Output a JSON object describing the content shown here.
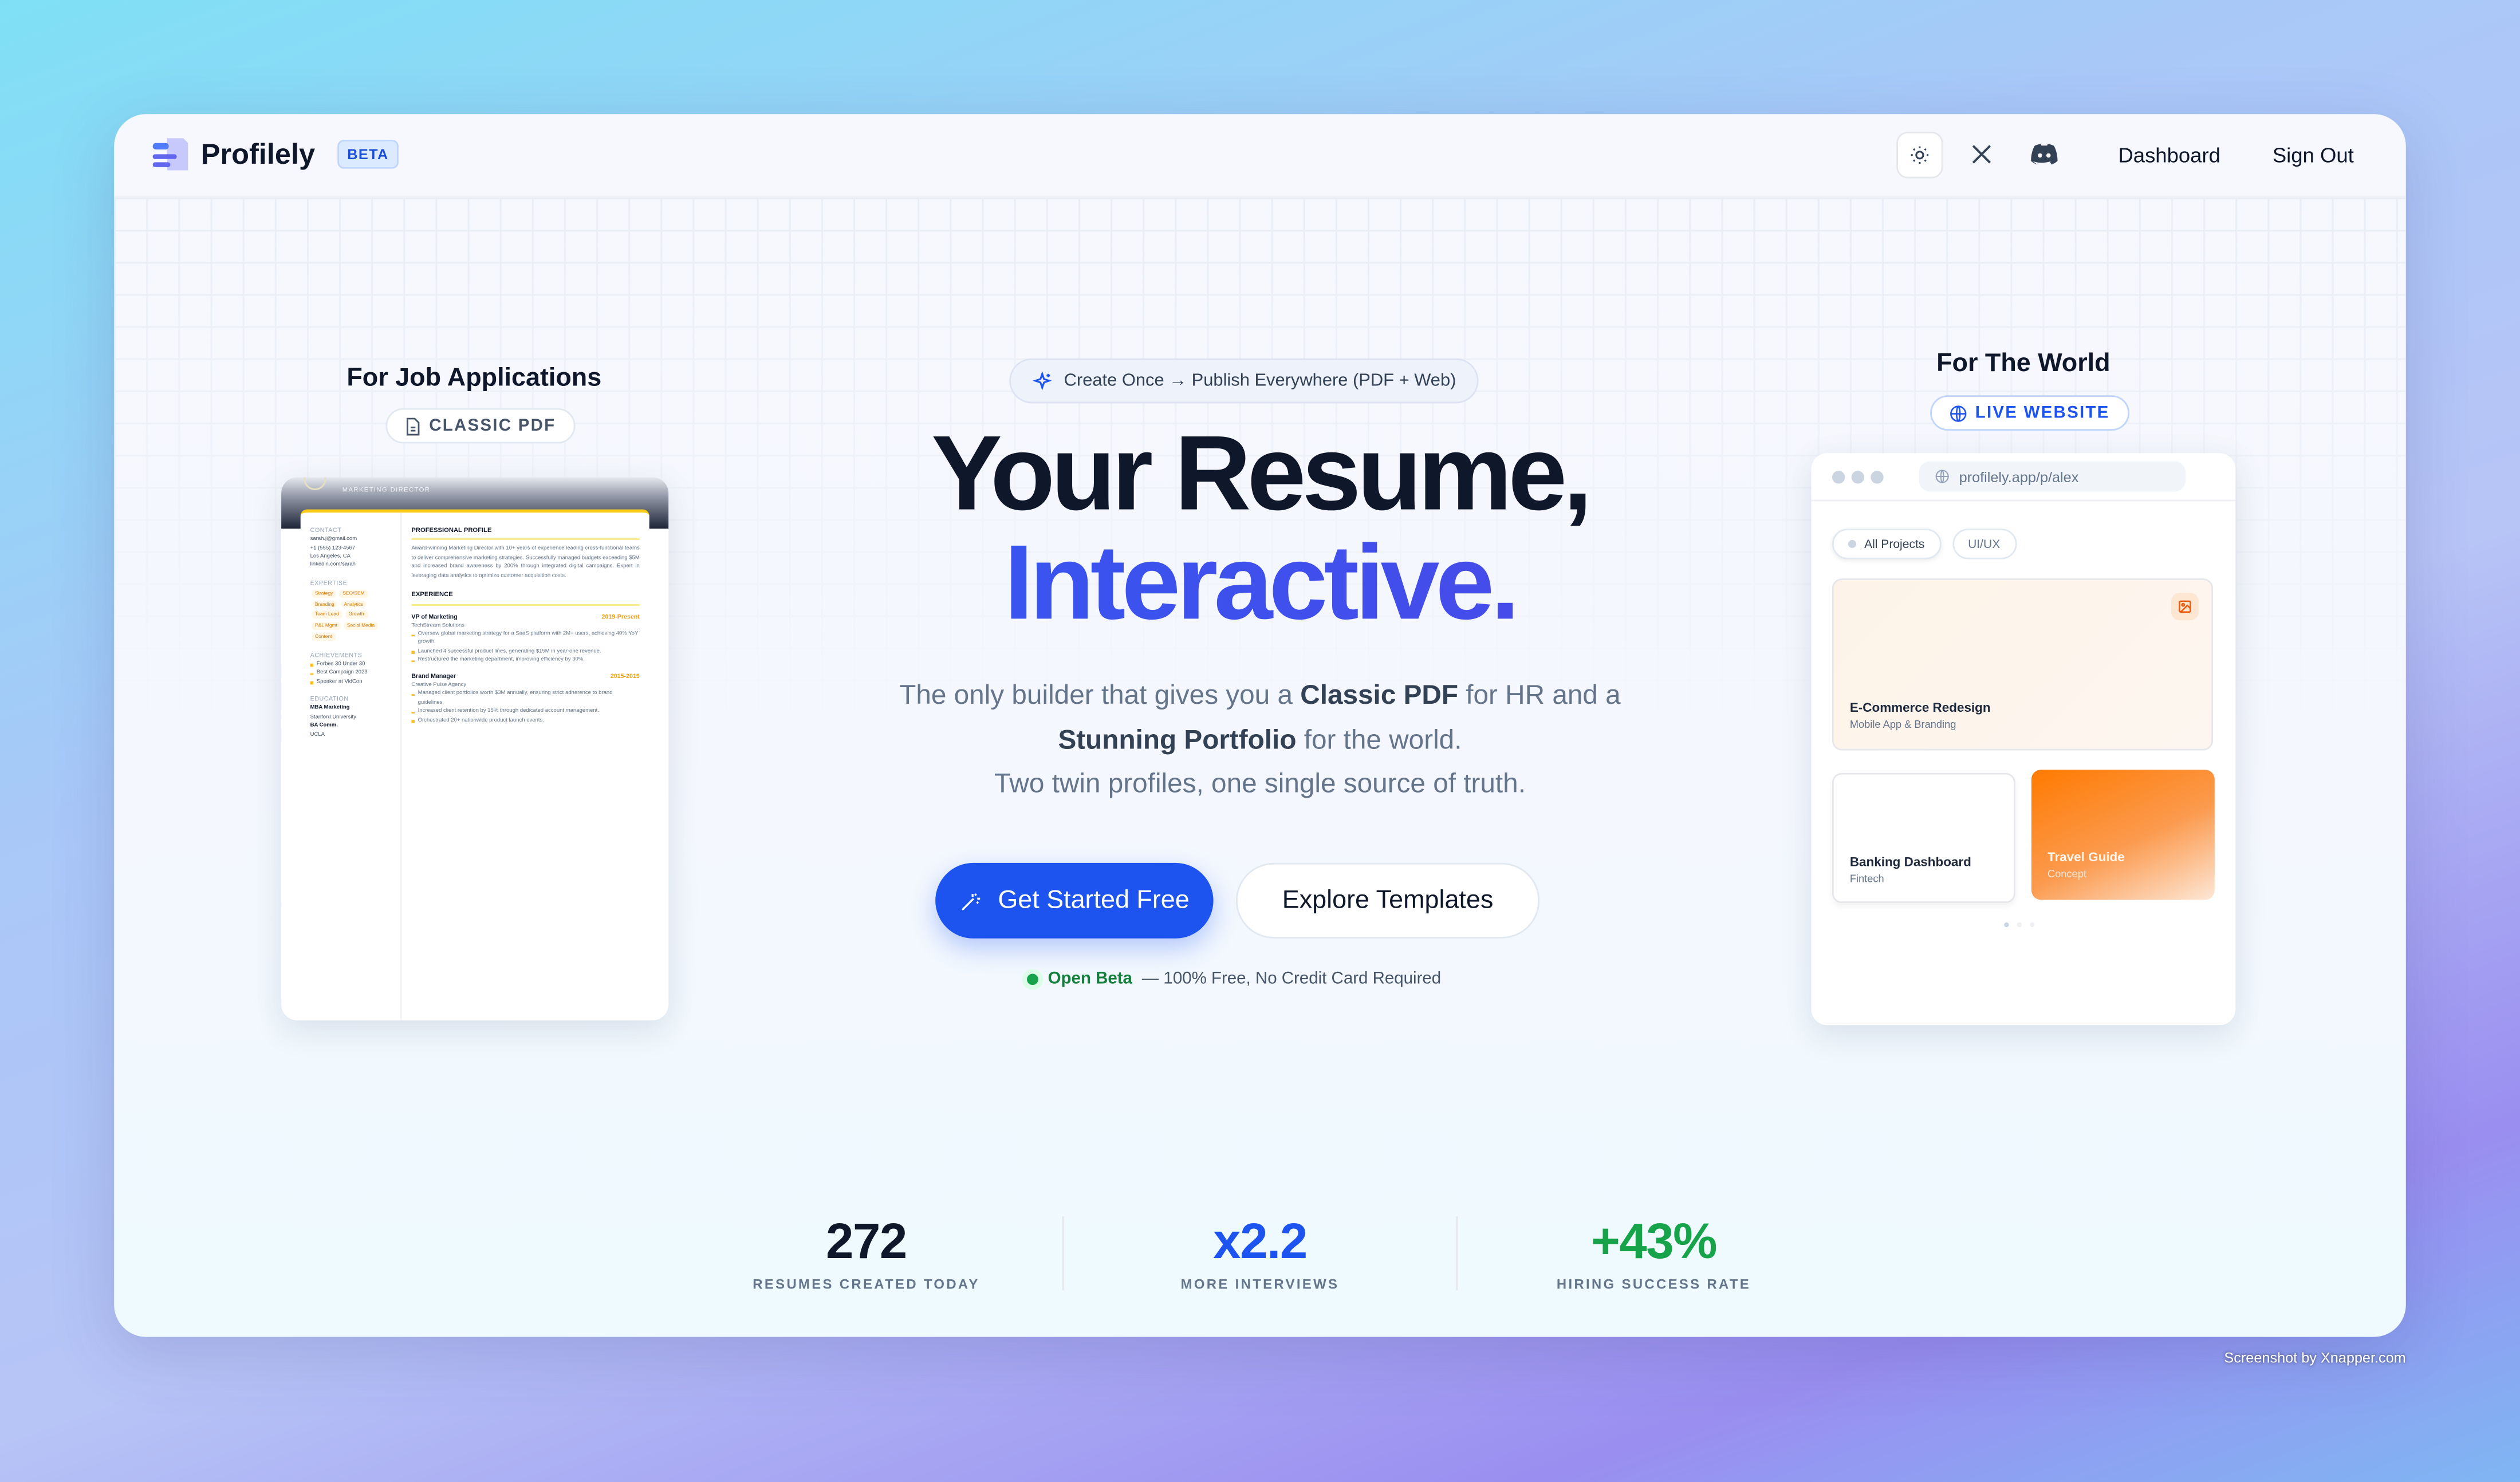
{
  "header": {
    "brand": "Profilely",
    "badge": "BETA",
    "icons": [
      "theme-toggle-sun-icon",
      "x-twitter-icon",
      "discord-icon"
    ],
    "nav": {
      "dashboard": "Dashboard",
      "sign_out": "Sign Out"
    }
  },
  "left": {
    "title": "For Job Applications",
    "chip": "CLASSIC PDF",
    "resume": {
      "role": "MARKETING DIRECTOR",
      "contact_label": "CONTACT",
      "contact": [
        "sarah.j@gmail.com",
        "+1 (555) 123-4567",
        "Los Angeles, CA",
        "linkedin.com/sarah"
      ],
      "expertise_label": "EXPERTISE",
      "expertise": [
        "Strategy",
        "SEO/SEM",
        "Branding",
        "Analytics",
        "Team Lead",
        "Growth",
        "P&L Mgmt",
        "Social Media",
        "Content"
      ],
      "achievements_label": "ACHIEVEMENTS",
      "achievements": [
        "Forbes 30 Under 30",
        "Best Campaign 2023",
        "Speaker at VidCon"
      ],
      "education_label": "EDUCATION",
      "education": [
        {
          "degree": "MBA Marketing",
          "school": "Stanford University"
        },
        {
          "degree": "BA Comm.",
          "school": "UCLA"
        }
      ],
      "profile_label": "PROFESSIONAL PROFILE",
      "profile": "Award-winning Marketing Director with 10+ years of experience leading cross-functional teams to deliver comprehensive marketing strategies. Successfully managed budgets exceeding $5M and increased brand awareness by 200% through integrated digital campaigns. Expert in leveraging data analytics to optimize customer acquisition costs.",
      "experience_label": "EXPERIENCE",
      "jobs": [
        {
          "title": "VP of Marketing",
          "dates": "2019-Present",
          "company": "TechStream Solutions",
          "bullets": [
            "Oversaw global marketing strategy for a SaaS platform with 2M+ users, achieving 40% YoY growth.",
            "Launched 4 successful product lines, generating $15M in year-one revenue.",
            "Restructured the marketing department, improving efficiency by 30%."
          ]
        },
        {
          "title": "Brand Manager",
          "dates": "2015-2019",
          "company": "Creative Pulse Agency",
          "bullets": [
            "Managed client portfolios worth $3M annually, ensuring strict adherence to brand guidelines.",
            "Increased client retention by 15% through dedicated account management.",
            "Orchestrated 20+ nationwide product launch events."
          ]
        }
      ]
    }
  },
  "hero": {
    "pill": "Create Once → Publish Everywhere (PDF + Web)",
    "title_line1": "Your Resume,",
    "title_line2": "Interactive.",
    "sub": {
      "p1": "The only builder that gives you a ",
      "b1": "Classic PDF",
      "p2": " for HR and a",
      "b2": "Stunning Portfolio",
      "p3": " for the world.",
      "line3": "Two twin profiles, one single source of truth."
    },
    "cta_primary": "Get Started Free",
    "cta_secondary": "Explore Templates",
    "note_status": "Open Beta",
    "note_text": "— 100% Free, No Credit Card Required"
  },
  "right": {
    "title": "For The World",
    "chip": "LIVE WEBSITE",
    "url": "profilely.app/p/alex",
    "filters": [
      "All Projects",
      "UI/UX"
    ],
    "projects": [
      {
        "title": "E-Commerce Redesign",
        "subtitle": "Mobile App & Branding"
      },
      {
        "title": "Banking Dashboard",
        "subtitle": "Fintech"
      },
      {
        "title": "Travel Guide",
        "subtitle": "Concept"
      }
    ]
  },
  "stats": [
    {
      "value": "272",
      "label": "RESUMES CREATED TODAY",
      "color": "#0f172a"
    },
    {
      "value": "x2.2",
      "label": "MORE INTERVIEWS",
      "color": "#1d54f0"
    },
    {
      "value": "+43%",
      "label": "HIRING SUCCESS RATE",
      "color": "#16a34a"
    }
  ],
  "watermark": "Screenshot by Xnapper.com",
  "colors": {
    "accent": "#1d54f0",
    "success": "#16a34a",
    "resume_accent": "#f59e0b",
    "portfolio_accent": "#f97316"
  }
}
